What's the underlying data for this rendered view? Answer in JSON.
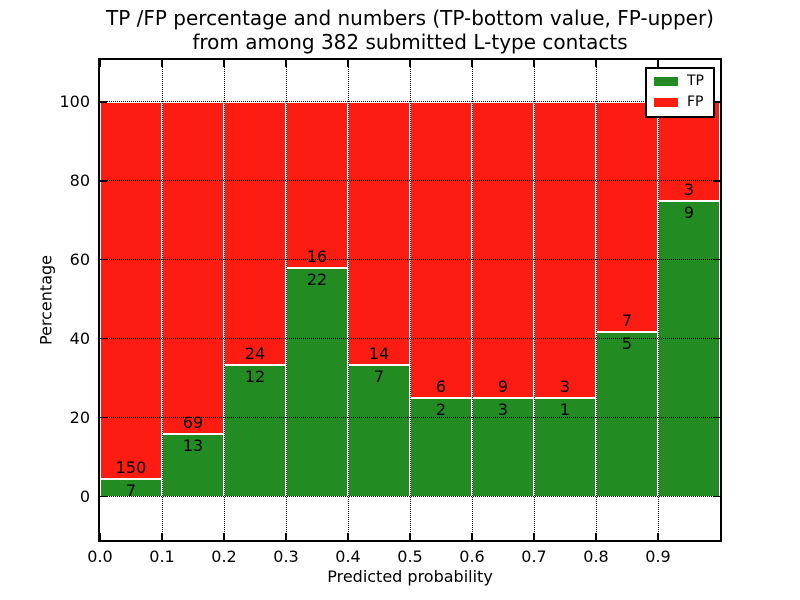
{
  "figure": {
    "title_lines": [
      "TP /FP percentage and numbers (TP-bottom value, FP-upper)",
      "from among 382 submitted L-type contacts"
    ]
  },
  "chart_data": {
    "type": "bar",
    "stacked": true,
    "title": "TP /FP percentage and numbers (TP-bottom value, FP-upper)\nfrom among 382 submitted L-type contacts",
    "xlabel": "Predicted probability",
    "ylabel": "Percentage",
    "xlim": [
      0.0,
      1.0
    ],
    "ylim": [
      -11,
      110.6
    ],
    "xticks": [
      "0.0",
      "0.1",
      "0.2",
      "0.3",
      "0.4",
      "0.5",
      "0.6",
      "0.7",
      "0.8",
      "0.9"
    ],
    "yticks": [
      0,
      20,
      40,
      60,
      80,
      100
    ],
    "grid": true,
    "grid_style": "dotted",
    "bin_width": 0.1,
    "bin_starts": [
      0.0,
      0.1,
      0.2,
      0.3,
      0.4,
      0.5,
      0.6,
      0.7,
      0.8,
      0.9
    ],
    "series": [
      {
        "name": "TP",
        "color": "#228b22",
        "counts": [
          7,
          13,
          12,
          22,
          7,
          2,
          3,
          1,
          5,
          9
        ]
      },
      {
        "name": "FP",
        "color": "#fd1c12",
        "counts": [
          150,
          69,
          24,
          16,
          14,
          6,
          9,
          3,
          7,
          3
        ]
      }
    ],
    "tp_percent": [
      4.46,
      15.85,
      33.33,
      57.89,
      33.33,
      25.0,
      25.0,
      25.0,
      41.67,
      75.0
    ],
    "total_contacts": 382,
    "legend": {
      "position": "upper right",
      "entries": [
        {
          "label": "TP",
          "color": "#228b22"
        },
        {
          "label": "FP",
          "color": "#fd1c12"
        }
      ]
    }
  }
}
